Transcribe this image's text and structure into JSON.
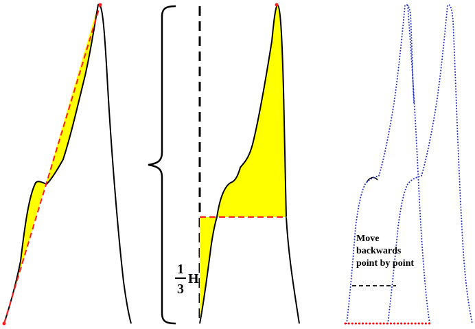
{
  "panels": {
    "middle": {
      "fraction_numerator": "1",
      "fraction_denominator": "3",
      "height_symbol": "H"
    },
    "right": {
      "annotation_lines": [
        "Move",
        "backwards",
        "point by point"
      ]
    }
  },
  "colors": {
    "fill": "#ffff00",
    "curve": "#000000",
    "red_dash": "#ff1a1a",
    "blue_dots": "#1f2fbf",
    "red_dots": "#ff0000"
  }
}
